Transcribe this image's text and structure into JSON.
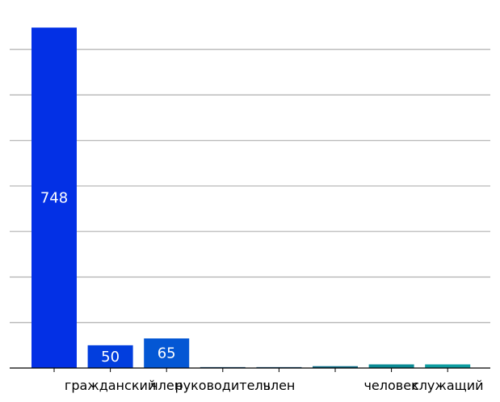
{
  "chart_data": {
    "type": "bar",
    "categories": [
      "",
      "гражданский",
      "член",
      "руководитель",
      "член",
      "",
      "человек",
      "служащий"
    ],
    "values": [
      748,
      50,
      65,
      2,
      2,
      4,
      8,
      8
    ],
    "data_labels": [
      "748",
      "50",
      "65",
      "",
      "",
      "",
      "",
      ""
    ],
    "colors": [
      "#0330e5",
      "#023ede",
      "#0457d4",
      "#0a4d7a",
      "#0a5280",
      "#0b6d87",
      "#0a8a94",
      "#0d9ca0"
    ],
    "ylim": [
      0,
      750
    ],
    "y_gridlines": [
      100,
      200,
      300,
      400,
      500,
      600,
      700
    ],
    "grid": true,
    "grid_color": "#b0b0b0",
    "legend": "none"
  }
}
